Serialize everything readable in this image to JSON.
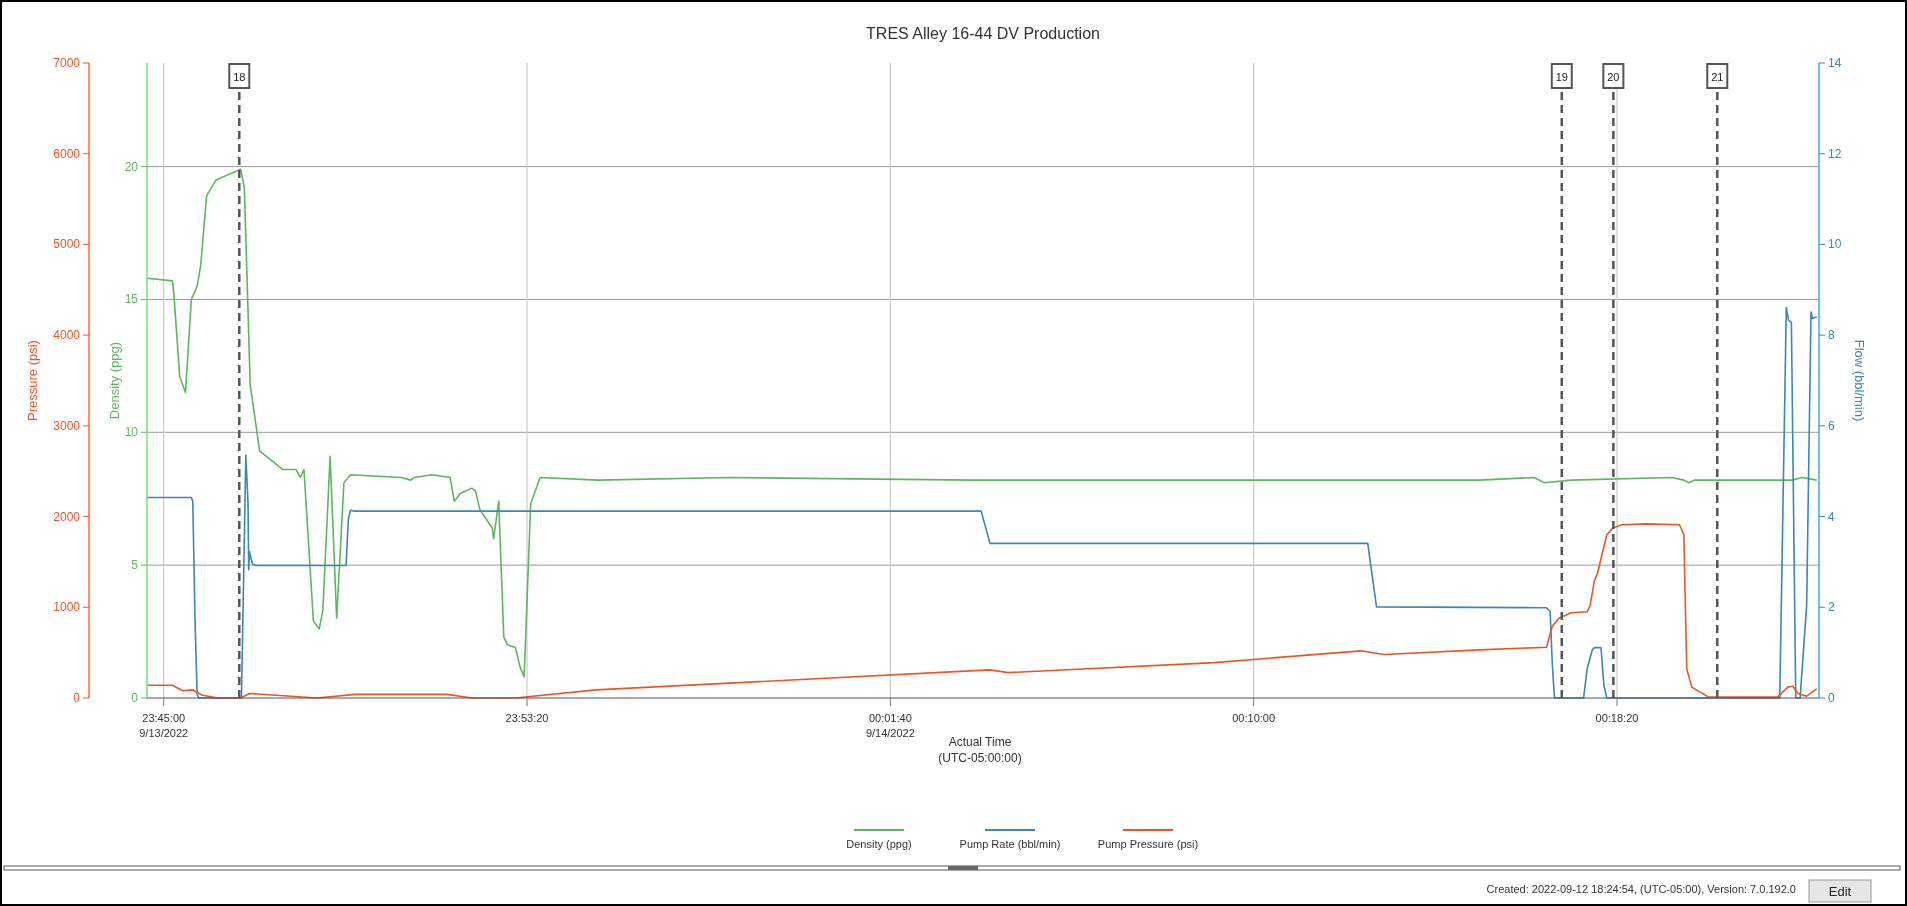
{
  "chart_data": {
    "type": "line",
    "title": "TRES Alley 16-44 DV Production",
    "xlabel": "Actual Time\n(UTC-05:00:00)",
    "ylabel": "Density (ppg)",
    "y2label": "Pressure (psi)",
    "y3label": "Flow (bbl/min)",
    "xlim": [
      "2022-09-13T23:44:37",
      "2022-09-14T00:22:58"
    ],
    "xticks": [
      {
        "value": "2022-09-13T23:45:00",
        "label": "23:45:00\n9/13/2022"
      },
      {
        "value": "2022-09-13T23:53:20",
        "label": "23:53:20"
      },
      {
        "value": "2022-09-14T00:01:40",
        "label": "00:01:40\n9/14/2022"
      },
      {
        "value": "2022-09-14T00:10:00",
        "label": "00:10:00"
      },
      {
        "value": "2022-09-14T00:18:20",
        "label": "00:18:20"
      }
    ],
    "ylim": [
      0,
      23.9
    ],
    "yticks": [
      0,
      5,
      10,
      15,
      20
    ],
    "y2lim": [
      0,
      7000
    ],
    "y2ticks": [
      0,
      1000,
      2000,
      3000,
      4000,
      5000,
      6000,
      7000
    ],
    "y3lim": [
      0,
      14
    ],
    "y3ticks": [
      0,
      2,
      4,
      6,
      8,
      10,
      12,
      14
    ],
    "grid": true,
    "legend": "bottom",
    "line_style": "solid",
    "series": [
      {
        "name": "Density (ppg)",
        "color": "#5cb85c",
        "x": [
          "2022-09-13T23:44:37",
          "2022-09-13T23:45:12",
          "2022-09-13T23:45:14",
          "2022-09-13T23:45:22",
          "2022-09-13T23:45:30",
          "2022-09-13T23:45:38",
          "2022-09-13T23:45:46",
          "2022-09-13T23:45:51",
          "2022-09-13T23:45:59",
          "2022-09-13T23:46:12",
          "2022-09-13T23:46:46",
          "2022-09-13T23:46:51",
          "2022-09-13T23:46:59",
          "2022-09-13T23:47:12",
          "2022-09-13T23:47:44",
          "2022-09-13T23:48:02",
          "2022-09-13T23:48:08",
          "2022-09-13T23:48:13",
          "2022-09-13T23:48:26",
          "2022-09-13T23:48:34",
          "2022-09-13T23:48:39",
          "2022-09-13T23:48:49",
          "2022-09-13T23:48:58",
          "2022-09-13T23:49:08",
          "2022-09-13T23:49:17",
          "2022-09-13T23:50:27",
          "2022-09-13T23:50:40",
          "2022-09-13T23:50:45",
          "2022-09-13T23:51:09",
          "2022-09-13T23:51:34",
          "2022-09-13T23:51:40",
          "2022-09-13T23:51:48",
          "2022-09-13T23:52:04",
          "2022-09-13T23:52:09",
          "2022-09-13T23:52:15",
          "2022-09-13T23:52:32",
          "2022-09-13T23:52:34",
          "2022-09-13T23:52:41",
          "2022-09-13T23:52:48",
          "2022-09-13T23:52:53",
          "2022-09-13T23:53:04",
          "2022-09-13T23:53:10",
          "2022-09-13T23:53:16",
          "2022-09-13T23:53:25",
          "2022-09-13T23:53:38",
          "2022-09-13T23:54:58",
          "2022-09-13T23:57:58",
          "2022-09-14T00:03:32",
          "2022-09-14T00:06:19",
          "2022-09-14T00:11:54",
          "2022-09-14T00:15:11",
          "2022-09-14T00:16:26",
          "2022-09-14T00:16:40",
          "2022-09-14T00:17:17",
          "2022-09-14T00:19:35",
          "2022-09-14T00:19:52",
          "2022-09-14T00:19:59",
          "2022-09-14T00:20:06",
          "2022-09-14T00:22:21",
          "2022-09-14T00:22:35",
          "2022-09-14T00:22:55"
        ],
        "values": [
          15.8,
          15.7,
          15.2,
          12.1,
          11.5,
          15.0,
          15.5,
          16.3,
          18.9,
          19.5,
          19.9,
          19.2,
          11.8,
          9.3,
          8.6,
          8.6,
          8.3,
          8.6,
          2.9,
          2.6,
          3.3,
          9.1,
          3.0,
          8.1,
          8.4,
          8.3,
          8.2,
          8.3,
          8.4,
          8.3,
          7.4,
          7.7,
          7.9,
          7.8,
          7.1,
          6.4,
          6.0,
          7.4,
          2.3,
          2.0,
          1.9,
          1.2,
          0.8,
          7.3,
          8.3,
          8.2,
          8.3,
          8.2,
          8.2,
          8.2,
          8.2,
          8.3,
          8.1,
          8.2,
          8.3,
          8.2,
          8.1,
          8.2,
          8.2,
          8.3,
          8.2
        ]
      },
      {
        "name": "Pump Rate (bbl/min)",
        "color": "#3a87b8",
        "axis": "y3",
        "x": [
          "2022-09-13T23:44:37",
          "2022-09-13T23:45:38",
          "2022-09-13T23:45:40",
          "2022-09-13T23:45:43",
          "2022-09-13T23:45:46",
          "2022-09-13T23:45:48",
          "2022-09-13T23:46:47",
          "2022-09-13T23:46:53",
          "2022-09-13T23:46:56",
          "2022-09-13T23:46:57",
          "2022-09-13T23:46:58",
          "2022-09-13T23:47:02",
          "2022-09-13T23:47:07",
          "2022-09-13T23:49:11",
          "2022-09-13T23:49:14",
          "2022-09-13T23:49:17",
          "2022-09-13T23:49:23",
          "2022-09-14T00:03:45",
          "2022-09-14T00:03:57",
          "2022-09-14T00:12:37",
          "2022-09-14T00:12:49",
          "2022-09-14T00:16:43",
          "2022-09-14T00:16:48",
          "2022-09-14T00:16:51",
          "2022-09-14T00:16:54",
          "2022-09-14T00:17:34",
          "2022-09-14T00:17:39",
          "2022-09-14T00:17:46",
          "2022-09-14T00:17:49",
          "2022-09-14T00:17:58",
          "2022-09-14T00:18:02",
          "2022-09-14T00:18:06",
          "2022-09-14T00:22:04",
          "2022-09-14T00:22:13",
          "2022-09-14T00:22:16",
          "2022-09-14T00:22:20",
          "2022-09-14T00:22:26",
          "2022-09-14T00:22:32",
          "2022-09-14T00:22:41",
          "2022-09-14T00:22:47",
          "2022-09-14T00:22:49",
          "2022-09-14T00:22:55"
        ],
        "values": [
          4.42,
          4.42,
          4.33,
          1.78,
          0.08,
          0,
          0,
          5.35,
          4.31,
          2.83,
          3.23,
          2.96,
          2.92,
          2.92,
          3.93,
          4.14,
          4.12,
          4.12,
          3.41,
          3.41,
          2.01,
          1.99,
          1.9,
          0.74,
          0,
          0,
          0.65,
          1.06,
          1.11,
          1.11,
          0.28,
          0,
          0,
          8.61,
          8.33,
          8.28,
          0,
          0,
          2.04,
          8.51,
          8.37,
          8.4
        ]
      },
      {
        "name": "Pump Pressure (psi)",
        "color": "#e8562a",
        "axis": "y2",
        "x": [
          "2022-09-13T23:44:37",
          "2022-09-13T23:45:12",
          "2022-09-13T23:45:26",
          "2022-09-13T23:45:40",
          "2022-09-13T23:45:53",
          "2022-09-13T23:46:15",
          "2022-09-13T23:46:46",
          "2022-09-13T23:46:58",
          "2022-09-13T23:48:31",
          "2022-09-13T23:49:24",
          "2022-09-13T23:51:30",
          "2022-09-13T23:52:04",
          "2022-09-13T23:53:04",
          "2022-09-13T23:54:55",
          "2022-09-14T00:03:57",
          "2022-09-14T00:04:22",
          "2022-09-14T00:09:06",
          "2022-09-14T00:12:27",
          "2022-09-14T00:13:00",
          "2022-09-14T00:15:11",
          "2022-09-14T00:16:43",
          "2022-09-14T00:16:51",
          "2022-09-14T00:17:00",
          "2022-09-14T00:17:17",
          "2022-09-14T00:17:39",
          "2022-09-14T00:17:43",
          "2022-09-14T00:17:49",
          "2022-09-14T00:17:53",
          "2022-09-14T00:18:06",
          "2022-09-14T00:18:14",
          "2022-09-14T00:18:26",
          "2022-09-14T00:19:00",
          "2022-09-14T00:19:46",
          "2022-09-14T00:19:52",
          "2022-09-14T00:19:56",
          "2022-09-14T00:20:03",
          "2022-09-14T00:20:26",
          "2022-09-14T00:22:01",
          "2022-09-14T00:22:15",
          "2022-09-14T00:22:22",
          "2022-09-14T00:22:29",
          "2022-09-14T00:22:41",
          "2022-09-14T00:22:55"
        ],
        "values": [
          140,
          140,
          80,
          90,
          30,
          0,
          0,
          50,
          0,
          40,
          40,
          0,
          0,
          90,
          310,
          280,
          390,
          520,
          480,
          530,
          560,
          790,
          880,
          940,
          950,
          1020,
          1300,
          1370,
          1800,
          1870,
          1910,
          1920,
          1910,
          1800,
          320,
          120,
          10,
          10,
          120,
          130,
          50,
          20,
          100
        ]
      }
    ],
    "ref_lines": [
      {
        "axis": "x",
        "value": "2022-09-13T23:46:44",
        "label": "18",
        "color": "#555555",
        "line_style": "dashed"
      },
      {
        "axis": "x",
        "value": "2022-09-14T00:17:04",
        "label": "19",
        "color": "#555555",
        "line_style": "dashed"
      },
      {
        "axis": "x",
        "value": "2022-09-14T00:18:15",
        "label": "20",
        "color": "#555555",
        "line_style": "dashed"
      },
      {
        "axis": "x",
        "value": "2022-09-14T00:20:38",
        "label": "21",
        "color": "#555555",
        "line_style": "dashed"
      }
    ],
    "annotations": [
      "Created: 2022-09-12  18:24:54, (UTC-05:00),   Version: 7.0.192.0",
      "Edit"
    ]
  }
}
